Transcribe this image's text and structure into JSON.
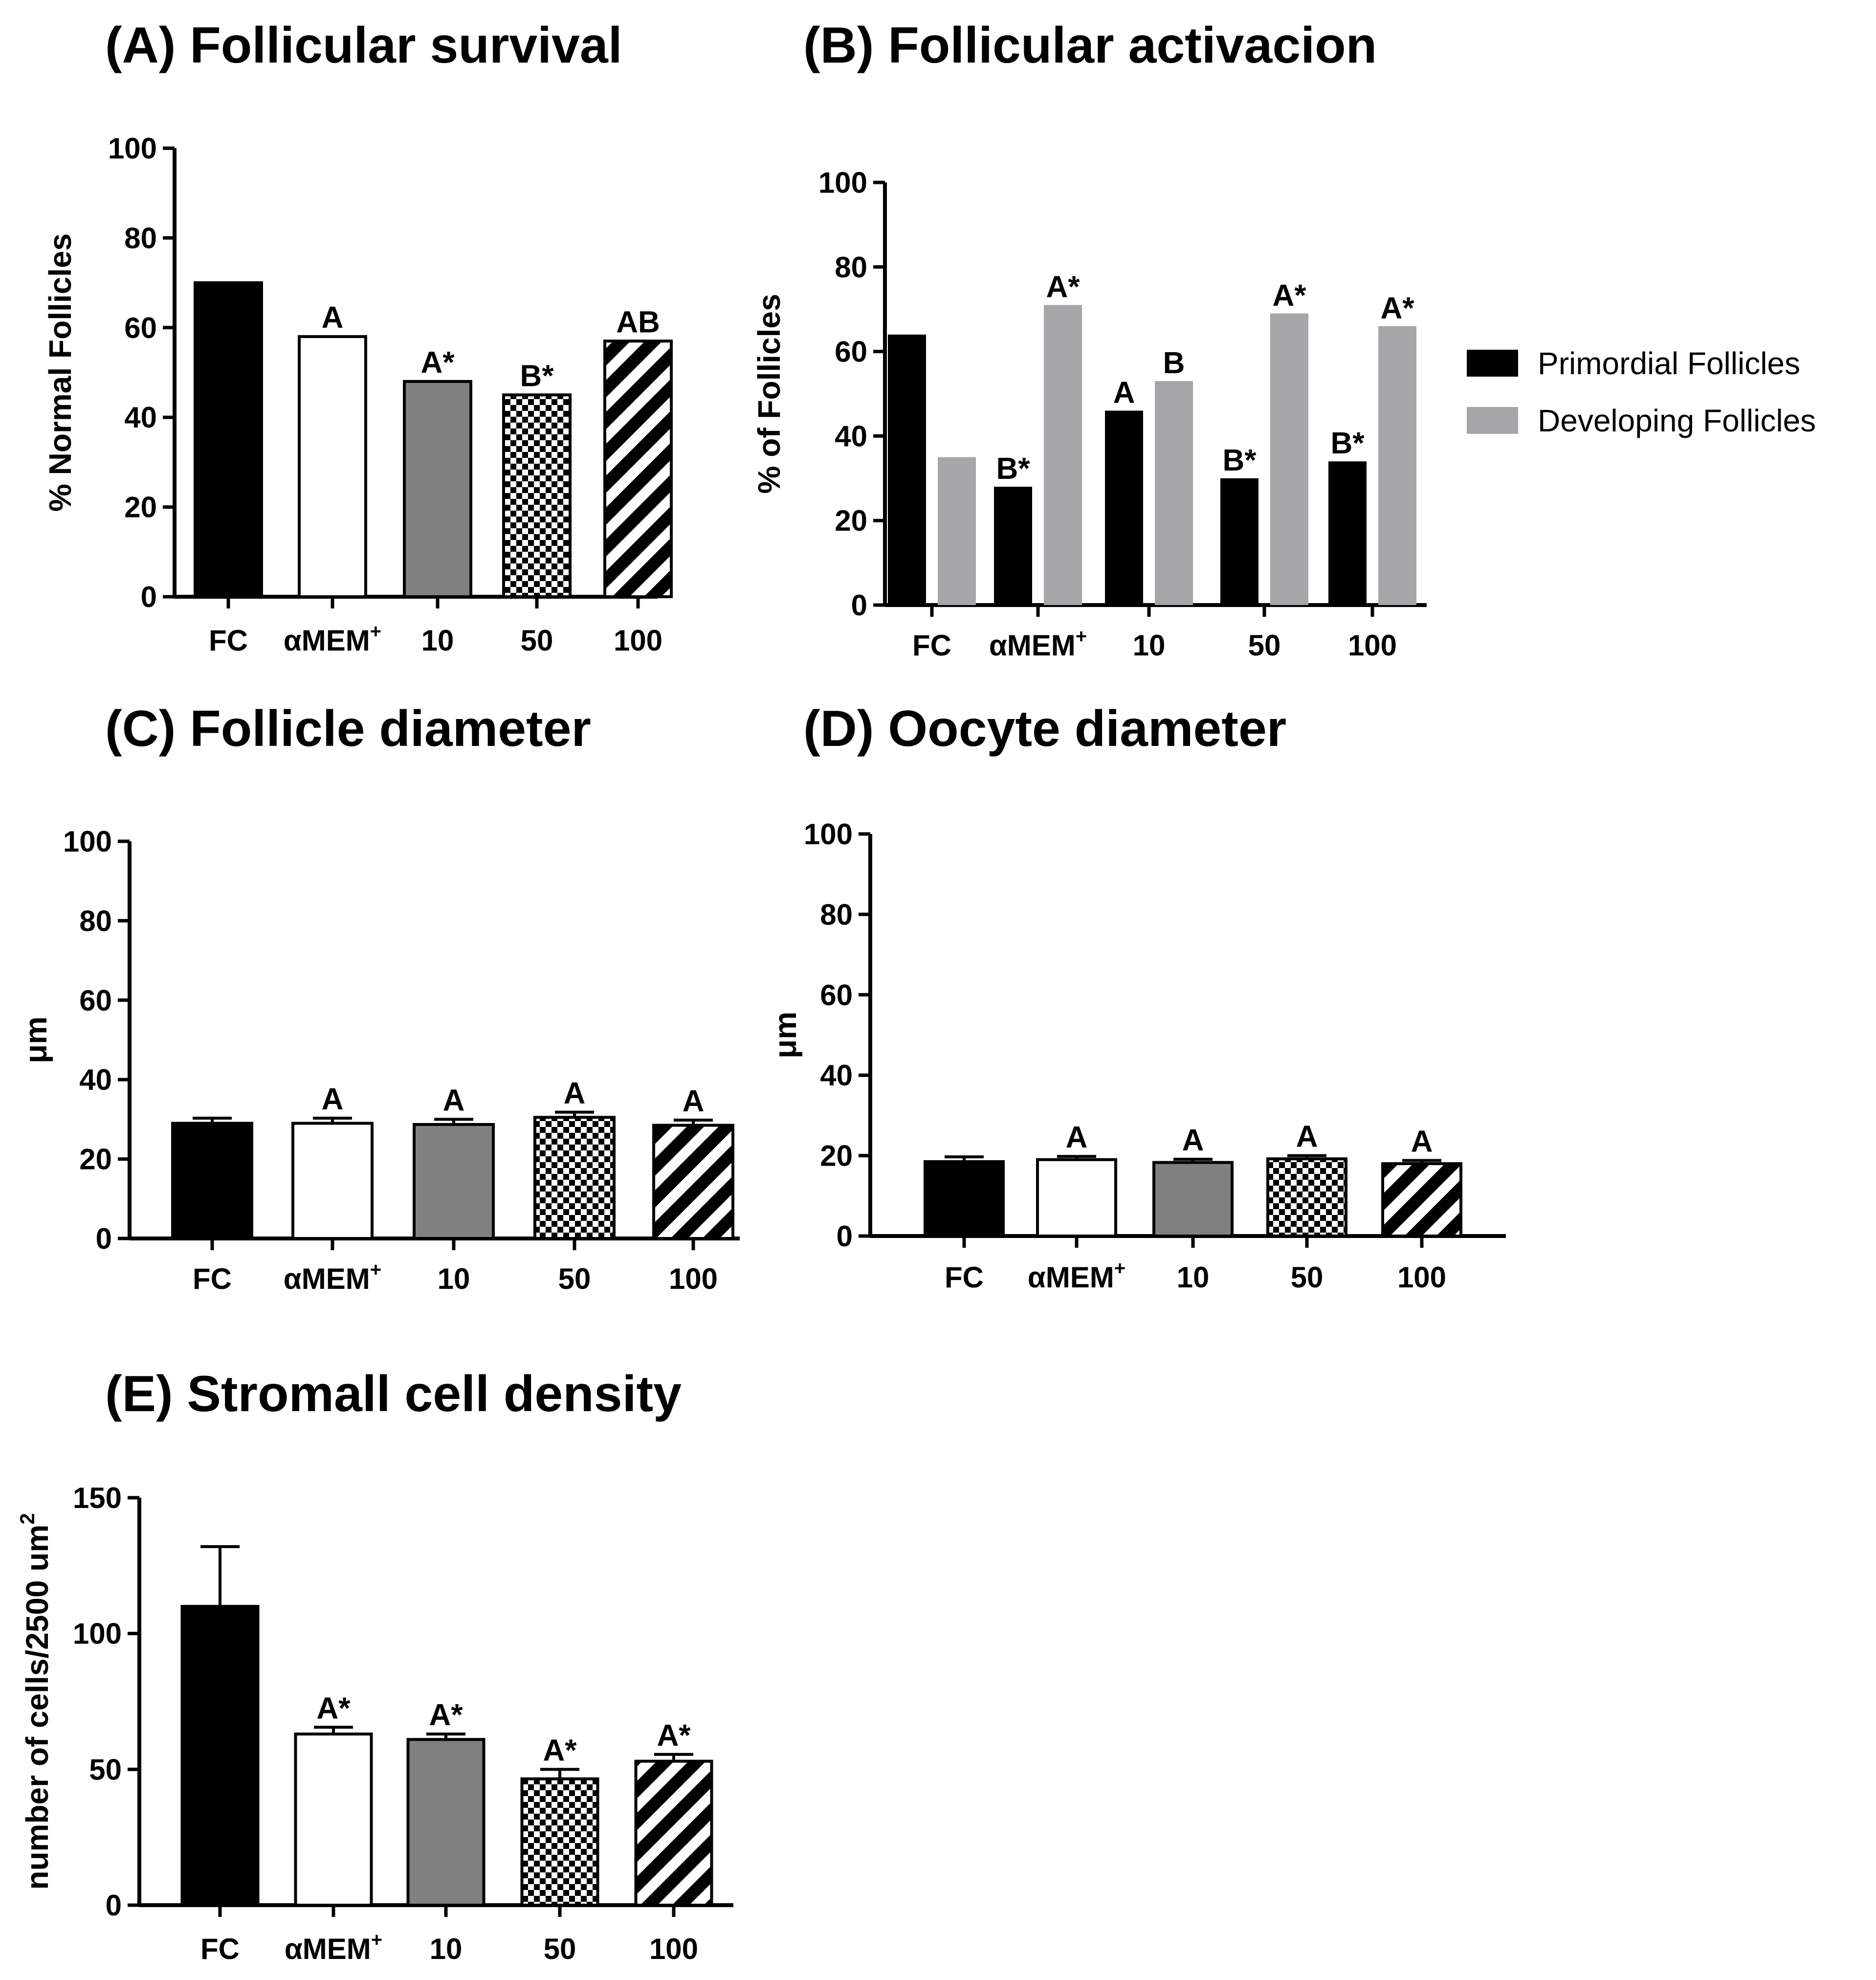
{
  "colors": {
    "black": "#000000",
    "white": "#ffffff",
    "gray": "#808080",
    "lightgray": "#a6a6a9"
  },
  "chart_data": [
    {
      "id": "A",
      "type": "bar",
      "title": "(A) Follicular survival",
      "ylabel": "% Normal Follicles",
      "xlabel": "",
      "ylim": [
        0,
        100
      ],
      "yticks": [
        0,
        20,
        40,
        60,
        80,
        100
      ],
      "categories": [
        "FC",
        "αMEM",
        "10",
        "50",
        "100"
      ],
      "category_superscripts": [
        "",
        "+",
        "",
        "",
        ""
      ],
      "values": [
        70,
        58,
        48,
        45,
        57
      ],
      "fills": [
        "black",
        "white",
        "gray",
        "checker",
        "stripes"
      ],
      "labels": [
        "",
        "A",
        "A*",
        "B*",
        "AB"
      ]
    },
    {
      "id": "B",
      "type": "bar",
      "title": "(B)  Follicular activacion",
      "ylabel": "% of Follicles",
      "xlabel": "",
      "ylim": [
        0,
        100
      ],
      "yticks": [
        0,
        20,
        40,
        60,
        80,
        100
      ],
      "categories": [
        "FC",
        "αMEM",
        "10",
        "50",
        "100"
      ],
      "category_superscripts": [
        "",
        "+",
        "",
        "",
        ""
      ],
      "legend_position": "right",
      "series": [
        {
          "name": "Primordial Follicles",
          "color": "#000000",
          "values": [
            64,
            28,
            46,
            30,
            34
          ],
          "labels": [
            "",
            "B*",
            "A",
            "B*",
            "B*"
          ]
        },
        {
          "name": "Developing Follicles",
          "color": "#a6a6a9",
          "values": [
            35,
            71,
            53,
            69,
            66
          ],
          "labels": [
            "",
            "A*",
            "B",
            "A*",
            "A*"
          ]
        }
      ]
    },
    {
      "id": "C",
      "type": "bar",
      "title": "(C) Follicle diameter",
      "ylabel": "μm",
      "xlabel": "",
      "ylim": [
        0,
        100
      ],
      "yticks": [
        0,
        20,
        40,
        60,
        80,
        100
      ],
      "categories": [
        "FC",
        "αMEM",
        "10",
        "50",
        "100"
      ],
      "category_superscripts": [
        "",
        "+",
        "",
        "",
        ""
      ],
      "values": [
        29,
        29,
        28.7,
        30.5,
        28.5
      ],
      "errors": [
        1.3,
        1.3,
        1.3,
        1.3,
        1.3
      ],
      "fills": [
        "black",
        "white",
        "gray",
        "checker",
        "stripes"
      ],
      "labels": [
        "",
        "A",
        "A",
        "A",
        "A"
      ]
    },
    {
      "id": "D",
      "type": "bar",
      "title": "(D) Oocyte diameter",
      "ylabel": "μm",
      "xlabel": "",
      "ylim": [
        0,
        100
      ],
      "yticks": [
        0,
        20,
        40,
        60,
        80,
        100
      ],
      "categories": [
        "FC",
        "αMEM",
        "10",
        "50",
        "100"
      ],
      "category_superscripts": [
        "",
        "+",
        "",
        "",
        ""
      ],
      "values": [
        18.5,
        19,
        18.3,
        19.2,
        18
      ],
      "errors": [
        1.2,
        0.8,
        0.8,
        0.8,
        0.8
      ],
      "fills": [
        "black",
        "white",
        "gray",
        "checker",
        "stripes"
      ],
      "labels": [
        "",
        "A",
        "A",
        "A",
        "A"
      ]
    },
    {
      "id": "E",
      "type": "bar",
      "title": "(E) Stromall cell density",
      "ylabel": "number of cells/2500 um",
      "ylabel_superscript": "2",
      "xlabel": "",
      "ylim": [
        0,
        150
      ],
      "yticks": [
        0,
        50,
        100,
        150
      ],
      "categories": [
        "FC",
        "αMEM",
        "10",
        "50",
        "100"
      ],
      "category_superscripts": [
        "",
        "+",
        "",
        "",
        ""
      ],
      "values": [
        110,
        63,
        61,
        46.5,
        53
      ],
      "errors": [
        22,
        2.5,
        2,
        3.5,
        2.5
      ],
      "fills": [
        "black",
        "white",
        "gray",
        "checker",
        "stripes"
      ],
      "labels": [
        "",
        "A*",
        "A*",
        "A*",
        "A*"
      ]
    }
  ]
}
